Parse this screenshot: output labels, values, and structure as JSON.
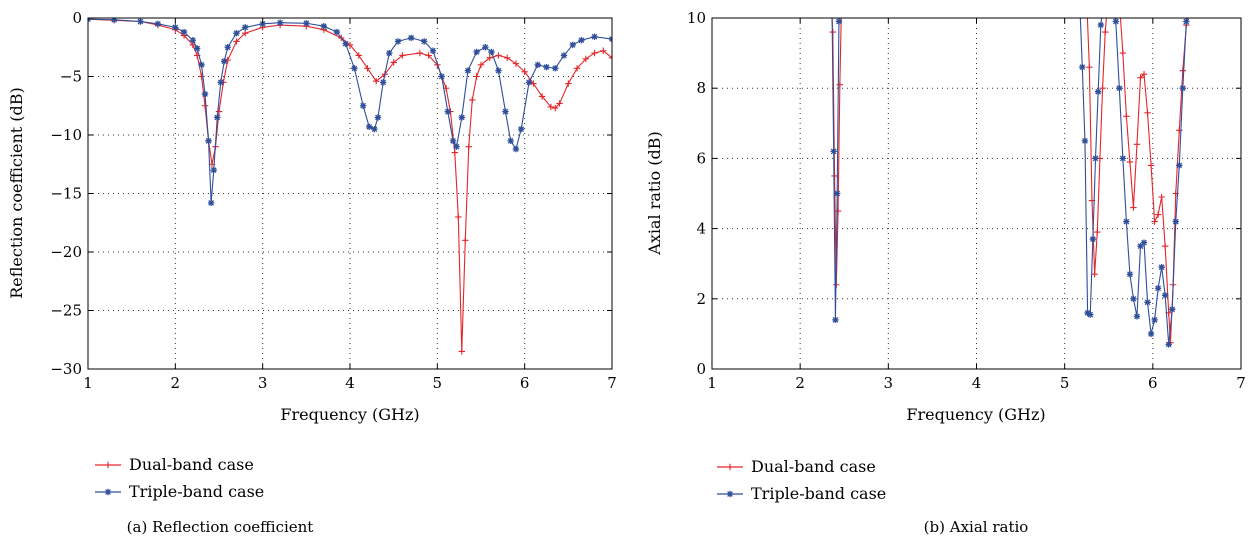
{
  "chart_data": [
    {
      "type": "line",
      "caption": "(a)  Reflection coefficient",
      "xlabel": "Frequency (GHz)",
      "ylabel": "Reflection coefficient (dB)",
      "xlim": [
        1,
        7
      ],
      "ylim": [
        -30,
        0
      ],
      "xticks": [
        1,
        2,
        3,
        4,
        5,
        6,
        7
      ],
      "yticks": [
        0,
        -5,
        -10,
        -15,
        -20,
        -25,
        -30
      ],
      "xtick_labels": [
        "1",
        "2",
        "3",
        "4",
        "5",
        "6",
        "7"
      ],
      "ytick_labels": [
        "0",
        "−5",
        "−10",
        "−15",
        "−20",
        "−25",
        "−30"
      ],
      "grid": true,
      "legend_position": "below",
      "series": [
        {
          "name": "Dual-band case",
          "color": "#e3262b",
          "marker": "plus",
          "x": [
            1.0,
            1.3,
            1.6,
            1.8,
            2.0,
            2.1,
            2.2,
            2.25,
            2.3,
            2.34,
            2.38,
            2.42,
            2.46,
            2.5,
            2.55,
            2.6,
            2.7,
            2.8,
            3.0,
            3.2,
            3.5,
            3.7,
            3.9,
            4.0,
            4.1,
            4.2,
            4.3,
            4.4,
            4.5,
            4.6,
            4.8,
            4.9,
            5.0,
            5.1,
            5.15,
            5.2,
            5.24,
            5.28,
            5.32,
            5.36,
            5.4,
            5.45,
            5.5,
            5.6,
            5.7,
            5.8,
            5.9,
            6.0,
            6.1,
            6.2,
            6.3,
            6.35,
            6.4,
            6.5,
            6.6,
            6.7,
            6.8,
            6.9,
            7.0
          ],
          "y": [
            -0.1,
            -0.2,
            -0.3,
            -0.6,
            -1.0,
            -1.5,
            -2.3,
            -3.2,
            -5.0,
            -7.5,
            -10.5,
            -12.5,
            -11.0,
            -8.0,
            -5.5,
            -3.6,
            -2.0,
            -1.3,
            -0.8,
            -0.6,
            -0.7,
            -1.0,
            -1.7,
            -2.3,
            -3.2,
            -4.3,
            -5.4,
            -4.8,
            -3.8,
            -3.2,
            -3.0,
            -3.2,
            -4.0,
            -6.0,
            -8.0,
            -11.5,
            -17.0,
            -28.5,
            -19.0,
            -11.0,
            -7.0,
            -5.0,
            -4.0,
            -3.4,
            -3.2,
            -3.4,
            -3.9,
            -4.6,
            -5.6,
            -6.7,
            -7.6,
            -7.7,
            -7.3,
            -5.6,
            -4.3,
            -3.5,
            -3.0,
            -2.8,
            -3.4
          ]
        },
        {
          "name": "Triple-band case",
          "color": "#2f4f9a",
          "marker": "star",
          "x": [
            1.0,
            1.3,
            1.6,
            1.8,
            2.0,
            2.1,
            2.2,
            2.25,
            2.3,
            2.34,
            2.38,
            2.41,
            2.44,
            2.48,
            2.52,
            2.56,
            2.6,
            2.7,
            2.8,
            3.0,
            3.2,
            3.5,
            3.7,
            3.85,
            3.95,
            4.05,
            4.15,
            4.22,
            4.28,
            4.32,
            4.38,
            4.45,
            4.55,
            4.7,
            4.85,
            4.95,
            5.05,
            5.12,
            5.18,
            5.22,
            5.28,
            5.35,
            5.45,
            5.55,
            5.62,
            5.7,
            5.78,
            5.84,
            5.9,
            5.96,
            6.05,
            6.15,
            6.25,
            6.35,
            6.45,
            6.55,
            6.65,
            6.8,
            7.0
          ],
          "y": [
            -0.1,
            -0.15,
            -0.3,
            -0.5,
            -0.8,
            -1.2,
            -1.9,
            -2.6,
            -4.0,
            -6.5,
            -10.5,
            -15.8,
            -13.0,
            -8.5,
            -5.5,
            -3.7,
            -2.5,
            -1.3,
            -0.8,
            -0.5,
            -0.4,
            -0.45,
            -0.7,
            -1.2,
            -2.2,
            -4.3,
            -7.5,
            -9.3,
            -9.5,
            -8.5,
            -5.5,
            -3.0,
            -2.0,
            -1.7,
            -2.0,
            -2.8,
            -5.0,
            -8.0,
            -10.5,
            -11.0,
            -8.5,
            -4.5,
            -2.9,
            -2.5,
            -2.9,
            -4.5,
            -8.0,
            -10.5,
            -11.2,
            -9.5,
            -5.5,
            -4.0,
            -4.2,
            -4.3,
            -3.2,
            -2.3,
            -1.9,
            -1.6,
            -1.8
          ]
        }
      ]
    },
    {
      "type": "line",
      "caption": "(b)  Axial ratio",
      "xlabel": "Frequency (GHz)",
      "ylabel": "Axial ratio (dB)",
      "xlim": [
        1,
        7
      ],
      "ylim": [
        0,
        10
      ],
      "xticks": [
        1,
        2,
        3,
        4,
        5,
        6,
        7
      ],
      "yticks": [
        0,
        2,
        4,
        6,
        8,
        10
      ],
      "xtick_labels": [
        "1",
        "2",
        "3",
        "4",
        "5",
        "6",
        "7"
      ],
      "ytick_labels": [
        "0",
        "2",
        "4",
        "6",
        "8",
        "10"
      ],
      "grid": true,
      "legend_position": "below",
      "series": [
        {
          "name": "Dual-band case",
          "color": "#e3262b",
          "marker": "plus",
          "segments": [
            {
              "x": [
                2.35,
                2.37,
                2.39,
                2.41,
                2.43,
                2.45,
                2.47
              ],
              "y": [
                10.5,
                9.6,
                5.5,
                2.4,
                4.5,
                8.1,
                10.5
              ]
            },
            {
              "x": [
                5.25,
                5.28,
                5.31,
                5.34,
                5.37,
                5.4,
                5.43,
                5.46,
                5.49
              ],
              "y": [
                10.5,
                8.6,
                4.8,
                2.7,
                3.9,
                6.0,
                8.0,
                9.6,
                10.5
              ]
            },
            {
              "x": [
                5.62,
                5.66,
                5.7,
                5.74,
                5.78,
                5.82,
                5.86,
                5.9,
                5.94,
                5.98,
                6.02,
                6.06,
                6.1,
                6.14,
                6.18,
                6.2,
                6.23,
                6.26,
                6.3,
                6.34,
                6.38,
                6.42
              ],
              "y": [
                10.5,
                9.0,
                7.2,
                5.9,
                4.6,
                6.4,
                8.3,
                8.4,
                7.3,
                5.8,
                4.2,
                4.4,
                4.9,
                3.5,
                1.6,
                0.75,
                2.4,
                5.0,
                6.8,
                8.5,
                9.8,
                10.5
              ]
            }
          ]
        },
        {
          "name": "Triple-band case",
          "color": "#2f4f9a",
          "marker": "star",
          "segments": [
            {
              "x": [
                2.36,
                2.38,
                2.4,
                2.42,
                2.44,
                2.46
              ],
              "y": [
                10.5,
                6.2,
                1.4,
                5.0,
                9.9,
                10.5
              ]
            },
            {
              "x": [
                5.17,
                5.2,
                5.23,
                5.26,
                5.29,
                5.32,
                5.35,
                5.38,
                5.41,
                5.44
              ],
              "y": [
                10.5,
                8.6,
                6.5,
                1.6,
                1.55,
                3.7,
                6.0,
                7.9,
                9.8,
                10.5
              ]
            },
            {
              "x": [
                5.55,
                5.58,
                5.62,
                5.66,
                5.7,
                5.74,
                5.78,
                5.82,
                5.86,
                5.9,
                5.94,
                5.98,
                6.02,
                6.06,
                6.1,
                6.14,
                6.18,
                6.22,
                6.26,
                6.3,
                6.34,
                6.38,
                6.41
              ],
              "y": [
                10.5,
                9.9,
                8.0,
                6.0,
                4.2,
                2.7,
                2.0,
                1.5,
                3.5,
                3.6,
                1.9,
                1.0,
                1.4,
                2.3,
                2.9,
                2.1,
                0.7,
                1.7,
                4.2,
                5.8,
                8.0,
                9.9,
                10.5
              ]
            }
          ]
        }
      ]
    }
  ]
}
